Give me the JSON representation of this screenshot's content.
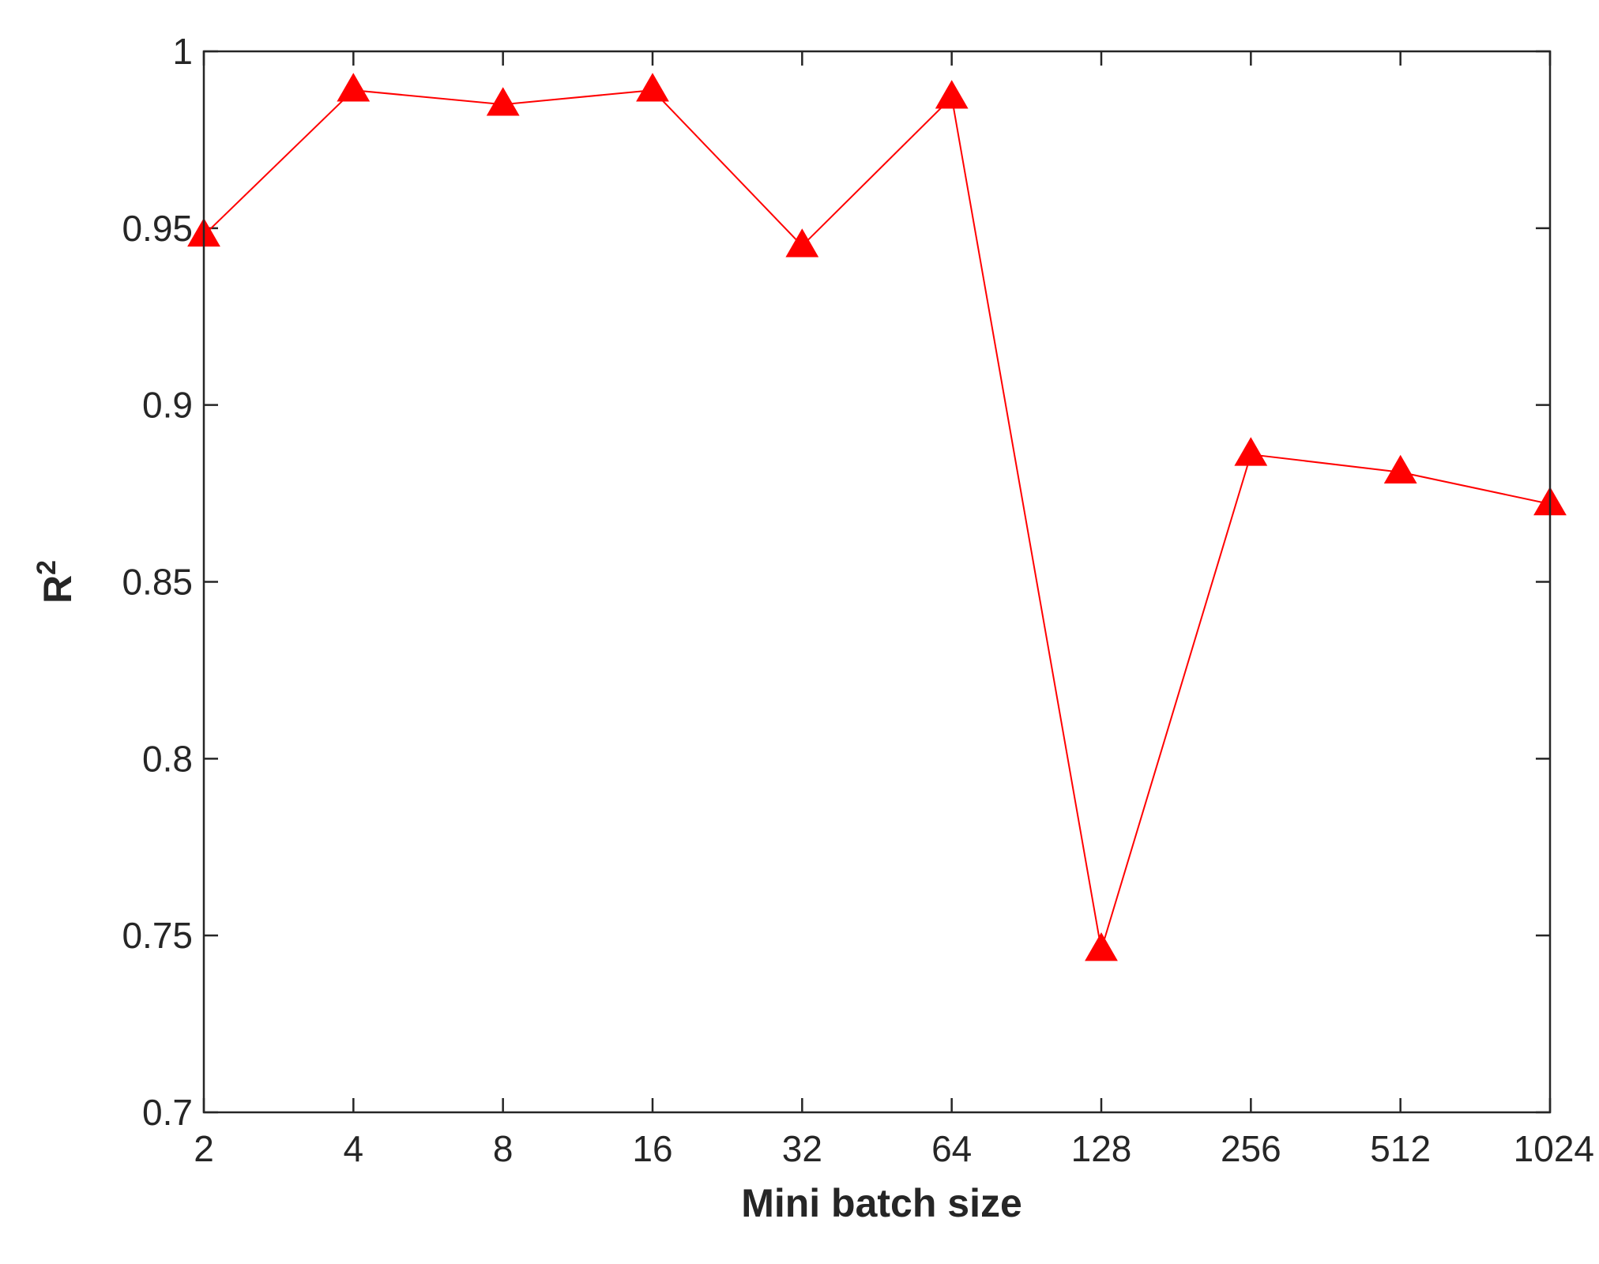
{
  "colors": {
    "series": "#ff0000",
    "axis": "#262626",
    "background": "#ffffff"
  },
  "chart_data": {
    "type": "line",
    "title": "",
    "xlabel": "Mini batch size",
    "ylabel_base": "R",
    "ylabel_superscript": "2",
    "x_scale": "log2",
    "categories": [
      "2",
      "4",
      "8",
      "16",
      "32",
      "64",
      "128",
      "256",
      "512",
      "1024"
    ],
    "x": [
      2,
      4,
      8,
      16,
      32,
      64,
      128,
      256,
      512,
      1024
    ],
    "ylim": [
      0.7,
      1
    ],
    "yticks": [
      0.7,
      0.75,
      0.8,
      0.85,
      0.9,
      0.95,
      1
    ],
    "ytick_labels": [
      "0.7",
      "0.75",
      "0.8",
      "0.85",
      "0.9",
      "0.95",
      "1"
    ],
    "grid": false,
    "legend": "none",
    "marker": "triangle",
    "series": [
      {
        "values": [
          0.948,
          0.989,
          0.985,
          0.989,
          0.945,
          0.987,
          0.746,
          0.886,
          0.881,
          0.872
        ]
      }
    ]
  }
}
